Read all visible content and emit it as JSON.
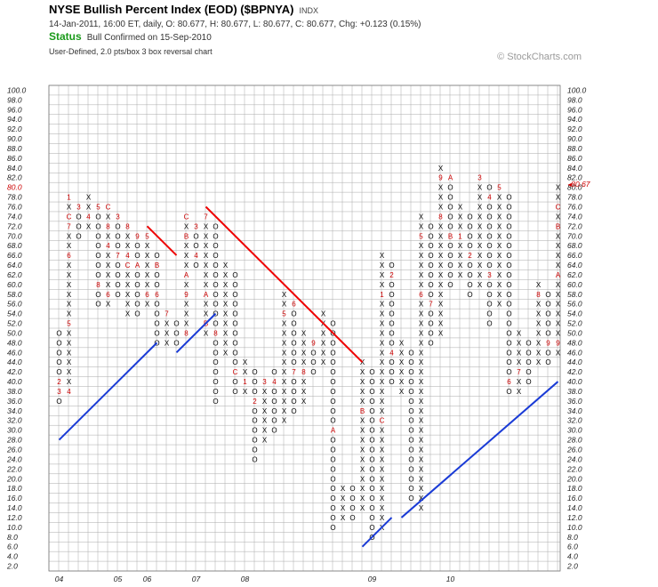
{
  "header": {
    "title": "NYSE Bullish Percent Index (EOD) ($BPNYA)",
    "index_tag": "INDX",
    "quote": "14-Jan-2011, 16:00 ET, daily, O: 80.677, H: 80.677, L: 80.677, C: 80.677, Chg: +0.123 (0.15%)",
    "status_label": "Status",
    "status_text": "Bull Confirmed on 15-Sep-2010",
    "method": "User-Defined, 2.0 pts/box 3 box reversal chart",
    "copyright": "© StockCharts.com"
  },
  "colors": {
    "x_mark": "#000000",
    "o_mark": "#000000",
    "month_mark": "#cc0000",
    "resistance": "#ee0000",
    "support": "#1a3bd6",
    "grid": "#aaaaaa"
  },
  "chart_data": {
    "type": "point-and-figure",
    "box_size": 2.0,
    "reversal": 3,
    "ylim": [
      2,
      100
    ],
    "y_ticks": [
      "100.0",
      "98.0",
      "96.0",
      "94.0",
      "92.0",
      "90.0",
      "88.0",
      "86.0",
      "84.0",
      "82.0",
      "80.0",
      "78.0",
      "76.0",
      "74.0",
      "72.0",
      "70.0",
      "68.0",
      "66.0",
      "64.0",
      "62.0",
      "60.0",
      "58.0",
      "56.0",
      "54.0",
      "52.0",
      "50.0",
      "48.0",
      "46.0",
      "44.0",
      "42.0",
      "40.0",
      "38.0",
      "36.0",
      "34.0",
      "32.0",
      "30.0",
      "28.0",
      "26.0",
      "24.0",
      "22.0",
      "20.0",
      "18.0",
      "16.0",
      "14.0",
      "12.0",
      "10.0",
      "8.0",
      "6.0",
      "4.0",
      "2.0"
    ],
    "highlight_tick": "80.0",
    "last_price_label": "80.67",
    "year_labels": [
      {
        "label": "04",
        "col": 0
      },
      {
        "label": "05",
        "col": 6
      },
      {
        "label": "06",
        "col": 9
      },
      {
        "label": "07",
        "col": 14
      },
      {
        "label": "08",
        "col": 19
      },
      {
        "label": "09",
        "col": 32
      },
      {
        "label": "10",
        "col": 40
      }
    ],
    "columns": [
      {
        "t": "O",
        "hi": 50,
        "lo": 36,
        "m": {
          "40": "2",
          "38": "3"
        }
      },
      {
        "t": "X",
        "hi": 78,
        "lo": 38,
        "m": {
          "78": "1",
          "74": "C",
          "72": "7",
          "66": "6",
          "52": "5",
          "38": "4"
        }
      },
      {
        "t": "O",
        "hi": 76,
        "lo": 70,
        "m": {
          "76": "3"
        }
      },
      {
        "t": "X",
        "hi": 78,
        "lo": 72,
        "m": {
          "74": "4"
        }
      },
      {
        "t": "O",
        "hi": 76,
        "lo": 56,
        "m": {
          "76": "5",
          "60": "8"
        }
      },
      {
        "t": "X",
        "hi": 76,
        "lo": 56,
        "m": {
          "76": "C",
          "72": "8",
          "68": "4",
          "58": "6"
        }
      },
      {
        "t": "O",
        "hi": 74,
        "lo": 58,
        "m": {
          "74": "3",
          "66": "7"
        }
      },
      {
        "t": "X",
        "hi": 72,
        "lo": 54,
        "m": {
          "72": "8",
          "66": "4",
          "64": "C"
        }
      },
      {
        "t": "O",
        "hi": 70,
        "lo": 54,
        "m": {
          "70": "9",
          "64": "A"
        }
      },
      {
        "t": "X",
        "hi": 70,
        "lo": 56,
        "m": {
          "70": "5",
          "58": "6"
        }
      },
      {
        "t": "O",
        "hi": 66,
        "lo": 48,
        "m": {
          "64": "B",
          "58": "6"
        }
      },
      {
        "t": "X",
        "hi": 54,
        "lo": 48,
        "m": {
          "54": "7"
        }
      },
      {
        "t": "O",
        "hi": 52,
        "lo": 48,
        "m": {}
      },
      {
        "t": "X",
        "hi": 74,
        "lo": 50,
        "m": {
          "74": "C",
          "70": "B",
          "62": "A",
          "58": "9",
          "50": "8"
        }
      },
      {
        "t": "O",
        "hi": 72,
        "lo": 64,
        "m": {
          "72": "3",
          "66": "4"
        }
      },
      {
        "t": "X",
        "hi": 74,
        "lo": 50,
        "m": {
          "74": "7",
          "58": "A",
          "52": "B"
        }
      },
      {
        "t": "O",
        "hi": 72,
        "lo": 36,
        "m": {
          "50": "8"
        }
      },
      {
        "t": "X",
        "hi": 64,
        "lo": 46,
        "m": {}
      },
      {
        "t": "O",
        "hi": 62,
        "lo": 38,
        "m": {
          "42": "C"
        }
      },
      {
        "t": "X",
        "hi": 44,
        "lo": 38,
        "m": {
          "40": "1"
        }
      },
      {
        "t": "O",
        "hi": 42,
        "lo": 24,
        "m": {
          "36": "2"
        }
      },
      {
        "t": "X",
        "hi": 40,
        "lo": 28,
        "m": {
          "40": "3"
        }
      },
      {
        "t": "O",
        "hi": 42,
        "lo": 30,
        "m": {
          "40": "4"
        }
      },
      {
        "t": "X",
        "hi": 58,
        "lo": 32,
        "m": {
          "54": "5"
        }
      },
      {
        "t": "O",
        "hi": 56,
        "lo": 34,
        "m": {
          "56": "6",
          "42": "7"
        }
      },
      {
        "t": "X",
        "hi": 50,
        "lo": 36,
        "m": {
          "42": "8"
        }
      },
      {
        "t": "O",
        "hi": 48,
        "lo": 42,
        "m": {
          "48": "9"
        }
      },
      {
        "t": "X",
        "hi": 54,
        "lo": 44,
        "m": {}
      },
      {
        "t": "O",
        "hi": 52,
        "lo": 10,
        "m": {
          "30": "A"
        }
      },
      {
        "t": "X",
        "hi": 18,
        "lo": 12,
        "m": {}
      },
      {
        "t": "O",
        "hi": 18,
        "lo": 12,
        "m": {}
      },
      {
        "t": "X",
        "hi": 44,
        "lo": 14,
        "m": {
          "34": "B"
        }
      },
      {
        "t": "O",
        "hi": 42,
        "lo": 8,
        "m": {}
      },
      {
        "t": "X",
        "hi": 66,
        "lo": 10,
        "m": {
          "58": "1",
          "32": "C"
        }
      },
      {
        "t": "O",
        "hi": 64,
        "lo": 40,
        "m": {
          "62": "2",
          "46": "4"
        }
      },
      {
        "t": "X",
        "hi": 48,
        "lo": 38,
        "m": {}
      },
      {
        "t": "O",
        "hi": 46,
        "lo": 16,
        "m": {}
      },
      {
        "t": "X",
        "hi": 74,
        "lo": 14,
        "m": {
          "70": "5",
          "58": "6"
        }
      },
      {
        "t": "O",
        "hi": 72,
        "lo": 48,
        "m": {
          "56": "7"
        }
      },
      {
        "t": "X",
        "hi": 84,
        "lo": 50,
        "m": {
          "82": "9",
          "74": "8"
        }
      },
      {
        "t": "O",
        "hi": 82,
        "lo": 60,
        "m": {
          "82": "A",
          "70": "B"
        }
      },
      {
        "t": "X",
        "hi": 76,
        "lo": 62,
        "m": {
          "70": "1"
        }
      },
      {
        "t": "O",
        "hi": 74,
        "lo": 58,
        "m": {
          "66": "2"
        }
      },
      {
        "t": "X",
        "hi": 82,
        "lo": 60,
        "m": {
          "82": "3"
        }
      },
      {
        "t": "O",
        "hi": 80,
        "lo": 52,
        "m": {
          "78": "4",
          "62": "3"
        }
      },
      {
        "t": "X",
        "hi": 80,
        "lo": 56,
        "m": {
          "80": "5"
        }
      },
      {
        "t": "O",
        "hi": 78,
        "lo": 38,
        "m": {
          "40": "6"
        }
      },
      {
        "t": "X",
        "hi": 50,
        "lo": 38,
        "m": {
          "42": "7"
        }
      },
      {
        "t": "O",
        "hi": 48,
        "lo": 40,
        "m": {}
      },
      {
        "t": "X",
        "hi": 60,
        "lo": 44,
        "m": {
          "58": "8"
        }
      },
      {
        "t": "O",
        "hi": 58,
        "lo": 44,
        "m": {
          "48": "9"
        }
      },
      {
        "t": "X",
        "hi": 80,
        "lo": 46,
        "m": {
          "76": "C",
          "72": "B",
          "62": "A",
          "48": "9"
        }
      }
    ],
    "trendlines": [
      {
        "kind": "support",
        "from": [
          0,
          28
        ],
        "to": [
          10,
          48
        ]
      },
      {
        "kind": "support",
        "from": [
          12,
          46
        ],
        "to": [
          16,
          54
        ]
      },
      {
        "kind": "resistance",
        "from": [
          9,
          72
        ],
        "to": [
          12,
          66
        ]
      },
      {
        "kind": "resistance",
        "from": [
          15,
          76
        ],
        "to": [
          31,
          44
        ]
      },
      {
        "kind": "support",
        "from": [
          31,
          6
        ],
        "to": [
          34,
          12
        ]
      },
      {
        "kind": "support",
        "from": [
          35,
          12
        ],
        "to": [
          51,
          40
        ]
      }
    ]
  }
}
